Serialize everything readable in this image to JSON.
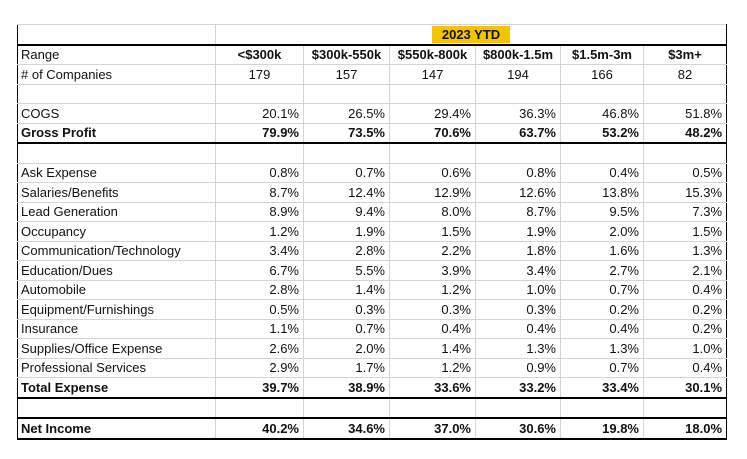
{
  "title": "2023 YTD",
  "colors": {
    "highlight": "#f5c400",
    "border": "#000000",
    "grid": "#d4d4d4"
  },
  "range_label": "Range",
  "ranges": [
    "<$300k",
    "$300k-550k",
    "$550k-800k",
    "$800k-1.5m",
    "$1.5m-3m",
    "$3m+"
  ],
  "companies_label": "# of Companies",
  "companies": [
    "179",
    "157",
    "147",
    "194",
    "166",
    "82"
  ],
  "rows_gross": [
    {
      "label": "COGS",
      "values": [
        "20.1%",
        "26.5%",
        "29.4%",
        "36.3%",
        "46.8%",
        "51.8%"
      ],
      "bold": false
    },
    {
      "label": "Gross Profit",
      "values": [
        "79.9%",
        "73.5%",
        "70.6%",
        "63.7%",
        "53.2%",
        "48.2%"
      ],
      "bold": true
    }
  ],
  "rows_expense": [
    {
      "label": "Ask Expense",
      "values": [
        "0.8%",
        "0.7%",
        "0.6%",
        "0.8%",
        "0.4%",
        "0.5%"
      ]
    },
    {
      "label": "Salaries/Benefits",
      "values": [
        "8.7%",
        "12.4%",
        "12.9%",
        "12.6%",
        "13.8%",
        "15.3%"
      ]
    },
    {
      "label": "Lead Generation",
      "values": [
        "8.9%",
        "9.4%",
        "8.0%",
        "8.7%",
        "9.5%",
        "7.3%"
      ]
    },
    {
      "label": "Occupancy",
      "values": [
        "1.2%",
        "1.9%",
        "1.5%",
        "1.9%",
        "2.0%",
        "1.5%"
      ]
    },
    {
      "label": "Communication/Technology",
      "values": [
        "3.4%",
        "2.8%",
        "2.2%",
        "1.8%",
        "1.6%",
        "1.3%"
      ]
    },
    {
      "label": "Education/Dues",
      "values": [
        "6.7%",
        "5.5%",
        "3.9%",
        "3.4%",
        "2.7%",
        "2.1%"
      ]
    },
    {
      "label": "Automobile",
      "values": [
        "2.8%",
        "1.4%",
        "1.2%",
        "1.0%",
        "0.7%",
        "0.4%"
      ]
    },
    {
      "label": "Equipment/Furnishings",
      "values": [
        "0.5%",
        "0.3%",
        "0.3%",
        "0.3%",
        "0.2%",
        "0.2%"
      ]
    },
    {
      "label": "Insurance",
      "values": [
        "1.1%",
        "0.7%",
        "0.4%",
        "0.4%",
        "0.4%",
        "0.2%"
      ]
    },
    {
      "label": "Supplies/Office Expense",
      "values": [
        "2.6%",
        "2.0%",
        "1.4%",
        "1.3%",
        "1.3%",
        "1.0%"
      ]
    },
    {
      "label": "Professional Services",
      "values": [
        "2.9%",
        "1.7%",
        "1.2%",
        "0.9%",
        "0.7%",
        "0.4%"
      ]
    }
  ],
  "total_expense": {
    "label": "Total Expense",
    "values": [
      "39.7%",
      "38.9%",
      "33.6%",
      "33.2%",
      "33.4%",
      "30.1%"
    ]
  },
  "net_income": {
    "label": "Net Income",
    "values": [
      "40.2%",
      "34.6%",
      "37.0%",
      "30.6%",
      "19.8%",
      "18.0%"
    ]
  }
}
